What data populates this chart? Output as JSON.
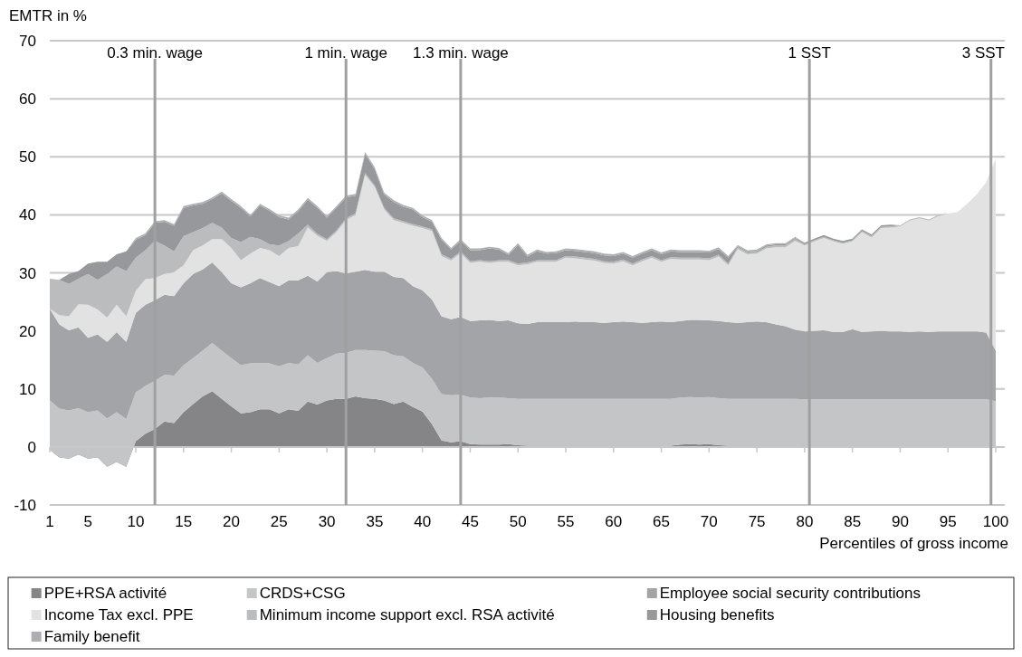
{
  "chart_data": {
    "type": "area",
    "stacked": true,
    "ylabel": "EMTR in %",
    "xlabel": "Percentiles of gross income",
    "x": [
      1,
      2,
      3,
      4,
      5,
      6,
      7,
      8,
      9,
      10,
      11,
      12,
      13,
      14,
      15,
      16,
      17,
      18,
      19,
      20,
      21,
      22,
      23,
      24,
      25,
      26,
      27,
      28,
      29,
      30,
      31,
      32,
      33,
      34,
      35,
      36,
      37,
      38,
      39,
      40,
      41,
      42,
      43,
      44,
      45,
      46,
      47,
      48,
      49,
      50,
      51,
      52,
      53,
      54,
      55,
      56,
      57,
      58,
      59,
      60,
      61,
      62,
      63,
      64,
      65,
      66,
      67,
      68,
      69,
      70,
      71,
      72,
      73,
      74,
      75,
      76,
      77,
      78,
      79,
      80,
      81,
      82,
      83,
      84,
      85,
      86,
      87,
      88,
      89,
      90,
      91,
      92,
      93,
      94,
      95,
      96,
      97,
      98,
      99,
      100
    ],
    "xlim": [
      1,
      100
    ],
    "xticks": [
      1,
      5,
      10,
      15,
      20,
      25,
      30,
      35,
      40,
      45,
      50,
      55,
      60,
      65,
      70,
      75,
      80,
      85,
      90,
      95,
      100
    ],
    "ylim": [
      -10,
      70
    ],
    "yticks": [
      -10,
      0,
      10,
      20,
      30,
      40,
      50,
      60,
      70
    ],
    "grid": "y",
    "legend": "bottom",
    "series": [
      {
        "name": "PPE+RSA activité",
        "color": "#858587",
        "values": [
          -0.5,
          -1.8,
          -2.0,
          -1.3,
          -2.0,
          -1.8,
          -3.4,
          -2.6,
          -3.4,
          1.0,
          2.3,
          3.1,
          4.4,
          4.1,
          6.0,
          7.4,
          8.7,
          9.6,
          8.3,
          7.0,
          5.8,
          6.0,
          6.5,
          6.5,
          5.8,
          6.5,
          6.2,
          7.8,
          7.3,
          8.0,
          8.3,
          8.3,
          8.7,
          8.4,
          8.3,
          8.0,
          7.4,
          7.8,
          6.9,
          6.1,
          3.9,
          1.1,
          0.8,
          1.0,
          0.5,
          0.4,
          0.4,
          0.4,
          0.5,
          0.3,
          0.2,
          0.2,
          0.2,
          0.2,
          0.2,
          0.2,
          0.2,
          0.2,
          0.2,
          0.2,
          0.2,
          0.2,
          0.2,
          0.2,
          0.2,
          0.2,
          0.4,
          0.5,
          0.4,
          0.5,
          0.3,
          0.2,
          0.2,
          0.2,
          0.2,
          0.2,
          0.2,
          0.2,
          0.2,
          0,
          0,
          0,
          0,
          0,
          0,
          0,
          0,
          0,
          0,
          0,
          0,
          0,
          0,
          0,
          0,
          0,
          0,
          0,
          0,
          0
        ]
      },
      {
        "name": "CRDS+CSG",
        "color": "#c4c5c7",
        "values": [
          8.5,
          8.4,
          8.3,
          8.0,
          8.0,
          8.1,
          8.3,
          8.6,
          8.2,
          8.4,
          8.2,
          8.3,
          8.0,
          8.2,
          8.1,
          7.9,
          7.9,
          8.3,
          8.3,
          8.3,
          8.3,
          8.4,
          8.0,
          7.9,
          8.1,
          8.0,
          8.0,
          8.0,
          7.2,
          7.3,
          7.8,
          7.9,
          8.0,
          8.3,
          8.3,
          8.5,
          8.4,
          7.8,
          7.6,
          7.6,
          7.8,
          8.0,
          8.1,
          8.0,
          8.0,
          8.0,
          8.1,
          8.1,
          7.9,
          8.0,
          8.1,
          8.1,
          8.1,
          8.1,
          8.1,
          8.1,
          8.1,
          8.1,
          8.1,
          8.1,
          8.1,
          8.1,
          8.1,
          8.1,
          8.1,
          8.1,
          8.1,
          8.1,
          8.1,
          8.1,
          8.1,
          8.1,
          8.1,
          8.1,
          8.1,
          8.1,
          8.1,
          8.1,
          8.1,
          8.2,
          8.2,
          8.2,
          8.2,
          8.2,
          8.2,
          8.2,
          8.2,
          8.2,
          8.2,
          8.2,
          8.2,
          8.2,
          8.2,
          8.2,
          8.2,
          8.2,
          8.2,
          8.2,
          8.2,
          7.9
        ]
      },
      {
        "name": "Employee social security contributions",
        "color": "#a3a4a7",
        "values": [
          15.8,
          14.5,
          13.8,
          13.9,
          12.8,
          13.1,
          13.2,
          13.8,
          13.3,
          13.7,
          14.0,
          13.9,
          13.8,
          13.7,
          14.1,
          14.5,
          14.0,
          13.9,
          13.5,
          12.9,
          13.4,
          13.8,
          14.6,
          14.0,
          13.8,
          14.2,
          14.5,
          13.7,
          14.0,
          14.8,
          14.2,
          13.7,
          13.5,
          13.8,
          13.6,
          13.7,
          13.5,
          13.5,
          13.2,
          13.3,
          13.7,
          13.4,
          13.1,
          13.4,
          13.2,
          13.4,
          13.4,
          13.2,
          13.4,
          13.0,
          12.9,
          13.2,
          13.2,
          13.2,
          13.2,
          13.3,
          13.2,
          13.2,
          13.1,
          13.2,
          13.3,
          13.2,
          13.1,
          13.2,
          13.3,
          13.2,
          13.2,
          13.3,
          13.4,
          13.2,
          13.3,
          13.2,
          13.1,
          13.2,
          13.3,
          13.2,
          12.8,
          12.5,
          11.9,
          11.7,
          11.8,
          11.9,
          11.6,
          11.6,
          12.1,
          11.6,
          11.7,
          11.8,
          11.7,
          11.7,
          11.6,
          11.7,
          11.6,
          11.7,
          11.7,
          11.7,
          11.7,
          11.7,
          11.5,
          8.7
        ]
      },
      {
        "name": "Income Tax excl. PPE",
        "color": "#e2e2e3",
        "values": [
          0,
          1.6,
          2.4,
          4.0,
          5.7,
          4.3,
          4.2,
          4.7,
          4.4,
          3.8,
          4.4,
          3.8,
          3.6,
          4.1,
          3.1,
          4.1,
          4.1,
          4.0,
          5.7,
          6.1,
          4.7,
          5.1,
          5.2,
          5.5,
          5.2,
          5.6,
          5.9,
          8.3,
          7.9,
          5.4,
          6.7,
          9.2,
          9.8,
          16.4,
          14.6,
          10.7,
          9.8,
          9.5,
          10.4,
          10.7,
          11.8,
          10.4,
          10.1,
          11.0,
          10.0,
          10.1,
          9.8,
          10.2,
          10.1,
          10.0,
          10.3,
          10.4,
          10.4,
          10.4,
          11.1,
          10.9,
          10.8,
          10.6,
          10.3,
          10.1,
          10.4,
          9.8,
          10.6,
          11.1,
          10.3,
          10.9,
          10.6,
          10.4,
          10.4,
          10.4,
          11.1,
          9.8,
          12.7,
          11.7,
          11.7,
          12.7,
          13.3,
          13.6,
          15.3,
          14.8,
          15.4,
          15.9,
          15.6,
          15.2,
          15.1,
          17.2,
          16.2,
          17.7,
          17.9,
          18.1,
          19.2,
          19.5,
          19.2,
          19.9,
          20.3,
          20.6,
          22.0,
          23.6,
          25.9,
          33.1
        ]
      },
      {
        "name": "Minimum income support excl. RSA activité",
        "color": "#bbbcbe",
        "values": [
          5.2,
          6.1,
          5.6,
          4.4,
          5.3,
          5.1,
          7.5,
          6.6,
          7.8,
          5.7,
          5.0,
          6.4,
          4.9,
          3.6,
          5.0,
          3.1,
          3.0,
          2.8,
          2.0,
          1.7,
          3.1,
          2.9,
          1.5,
          1.0,
          1.8,
          1.2,
          2.2,
          0.5,
          0.3,
          0.3,
          0.3,
          0.3,
          0.3,
          0.3,
          0.3,
          0.3,
          0.3,
          0.3,
          0.3,
          0.3,
          0.3,
          0.3,
          0.3,
          0.3,
          0.3,
          0.3,
          0.3,
          0.3,
          0.3,
          0.3,
          0.3,
          0.3,
          0.3,
          0.3,
          0.3,
          0.3,
          0.3,
          0.3,
          0.3,
          0.3,
          0.3,
          0.3,
          0.3,
          0.3,
          0.3,
          0.3,
          0.3,
          0.3,
          0.3,
          0.3,
          0.3,
          0.3,
          0.3,
          0.3,
          0.3,
          0.3,
          0.3,
          0.3,
          0.3,
          0.2,
          0.2,
          0.2,
          0.2,
          0.2,
          0.2,
          0.2,
          0.2,
          0.2,
          0.2,
          0.2,
          0.2,
          0.2,
          0.2,
          0.2,
          0,
          0,
          0,
          0,
          0,
          0
        ]
      },
      {
        "name": "Housing benefits",
        "color": "#97989b",
        "values": [
          0,
          0,
          1.7,
          1.3,
          1.8,
          3.1,
          2.1,
          2.1,
          3.4,
          3.1,
          2.6,
          3.1,
          4.1,
          4.4,
          4.9,
          4.6,
          4.2,
          4.1,
          5.9,
          6.4,
          5.9,
          3.5,
          5.8,
          5.8,
          4.9,
          3.7,
          3.8,
          4.3,
          4.5,
          3.7,
          3.9,
          3.6,
          3.0,
          3.3,
          2.8,
          2.3,
          2.8,
          2.5,
          2.5,
          1.6,
          1.3,
          2.5,
          1.6,
          1.8,
          1.9,
          1.7,
          2.2,
          1.8,
          0.9,
          3.2,
          1.0,
          1.5,
          1.1,
          1.2,
          1.0,
          1.0,
          1.0,
          1.0,
          1.0,
          1.0,
          1.0,
          1.0,
          1.0,
          1.0,
          1.0,
          1.0,
          1.0,
          1.0,
          1.0,
          1.0,
          1.0,
          1.0,
          0.2,
          0.2,
          0.2,
          0.2,
          0.2,
          0.2,
          0.2,
          0.3,
          0.3,
          0.3,
          0.3,
          0.3,
          0.3,
          0.3,
          0.3,
          0.3,
          0.3,
          0,
          0,
          0,
          0,
          0,
          0,
          0,
          0,
          0,
          0,
          0
        ]
      },
      {
        "name": "Family benefit",
        "color": "#adaeb1",
        "values": [
          0,
          0,
          0,
          0,
          0,
          0,
          0,
          0,
          0,
          0.3,
          0.3,
          0.3,
          0.3,
          0.3,
          0.3,
          0.3,
          0.3,
          0.3,
          0.3,
          0.3,
          0.3,
          0.3,
          0.3,
          0.3,
          0.3,
          0.3,
          0.3,
          0.3,
          0.3,
          0.3,
          0.3,
          0.3,
          0.3,
          0.3,
          0.3,
          0.3,
          0.3,
          0.3,
          0.3,
          0.3,
          0.3,
          0.3,
          0.3,
          0.3,
          0.3,
          0.3,
          0.3,
          0.3,
          0.3,
          0.3,
          0.3,
          0.3,
          0.3,
          0.3,
          0.3,
          0.3,
          0.3,
          0.3,
          0.3,
          0.3,
          0.3,
          0.3,
          0.3,
          0.3,
          0.3,
          0.3,
          0.3,
          0.3,
          0.3,
          0.3,
          0.3,
          0.3,
          0.2,
          0.2,
          0.2,
          0.2,
          0.2,
          0.2,
          0.2,
          0,
          0,
          0,
          0,
          0,
          0,
          0,
          0,
          0,
          0,
          0,
          0,
          0,
          0,
          0,
          0,
          0,
          0,
          0,
          0,
          0
        ]
      }
    ],
    "ref_lines": [
      {
        "axis": "x",
        "value": 12,
        "label": "0.3 min. wage",
        "color": "#a0a0a2"
      },
      {
        "axis": "x",
        "value": 32,
        "label": "1 min. wage",
        "color": "#a0a0a2"
      },
      {
        "axis": "x",
        "value": 44,
        "label": "1.3 min. wage",
        "color": "#a0a0a2"
      },
      {
        "axis": "x",
        "value": 80.5,
        "label": "1 SST",
        "color": "#a0a0a2"
      },
      {
        "axis": "x",
        "value": 99.5,
        "label": "3 SST",
        "color": "#a0a0a2"
      }
    ]
  }
}
